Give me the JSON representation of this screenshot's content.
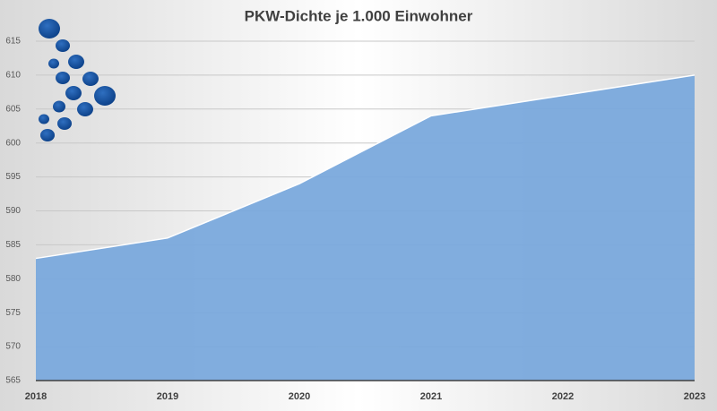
{
  "chart_data": {
    "type": "area",
    "title": "PKW-Dichte je 1.000 Einwohner",
    "x": [
      2018,
      2019,
      2020,
      2021,
      2022,
      2023
    ],
    "values": [
      583,
      586,
      594,
      604,
      607,
      610
    ],
    "color": "#7aa9dc",
    "xlim": [
      2018,
      2023
    ],
    "xticks": [
      2018,
      2019,
      2020,
      2021,
      2022,
      2023
    ],
    "ylim": [
      565,
      615
    ],
    "yticks": [
      565,
      570,
      575,
      580,
      585,
      590,
      595,
      600,
      605,
      610,
      615
    ],
    "grid": true
  }
}
